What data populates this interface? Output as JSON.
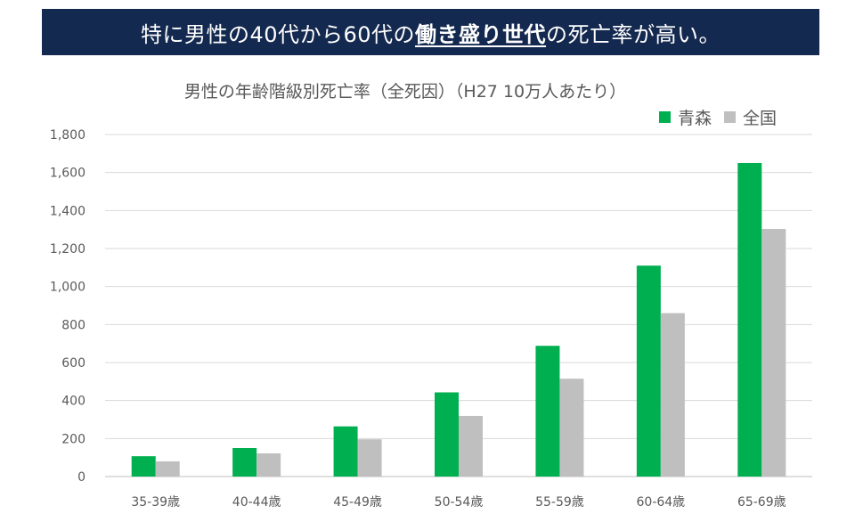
{
  "banner": {
    "prefix": "特に男性の40代から60代の",
    "highlight": "働き盛り世代",
    "suffix": "の死亡率が高い。"
  },
  "colors": {
    "banner_bg": "#14294f",
    "aomori": "#00b050",
    "national": "#bfbfbf",
    "grid": "#d9d9d9"
  },
  "chart_data": {
    "type": "bar",
    "title": "男性の年齢階級別死亡率（全死因）（H27 10万人あたり）",
    "xlabel": "",
    "ylabel": "",
    "categories": [
      "35-39歳",
      "40-44歳",
      "45-49歳",
      "50-54歳",
      "55-59歳",
      "60-64歳",
      "65-69歳"
    ],
    "series": [
      {
        "name": "青森",
        "values": [
          107,
          150,
          264,
          443,
          688,
          1110,
          1650
        ]
      },
      {
        "name": "全国",
        "values": [
          80,
          122,
          196,
          319,
          515,
          860,
          1303
        ]
      }
    ],
    "ylim": [
      0,
      1800
    ],
    "yticks": [
      "0",
      "200",
      "400",
      "600",
      "800",
      "1,000",
      "1,200",
      "1,400",
      "1,600",
      "1,800"
    ],
    "grid": true,
    "legend_position": "top-right"
  }
}
